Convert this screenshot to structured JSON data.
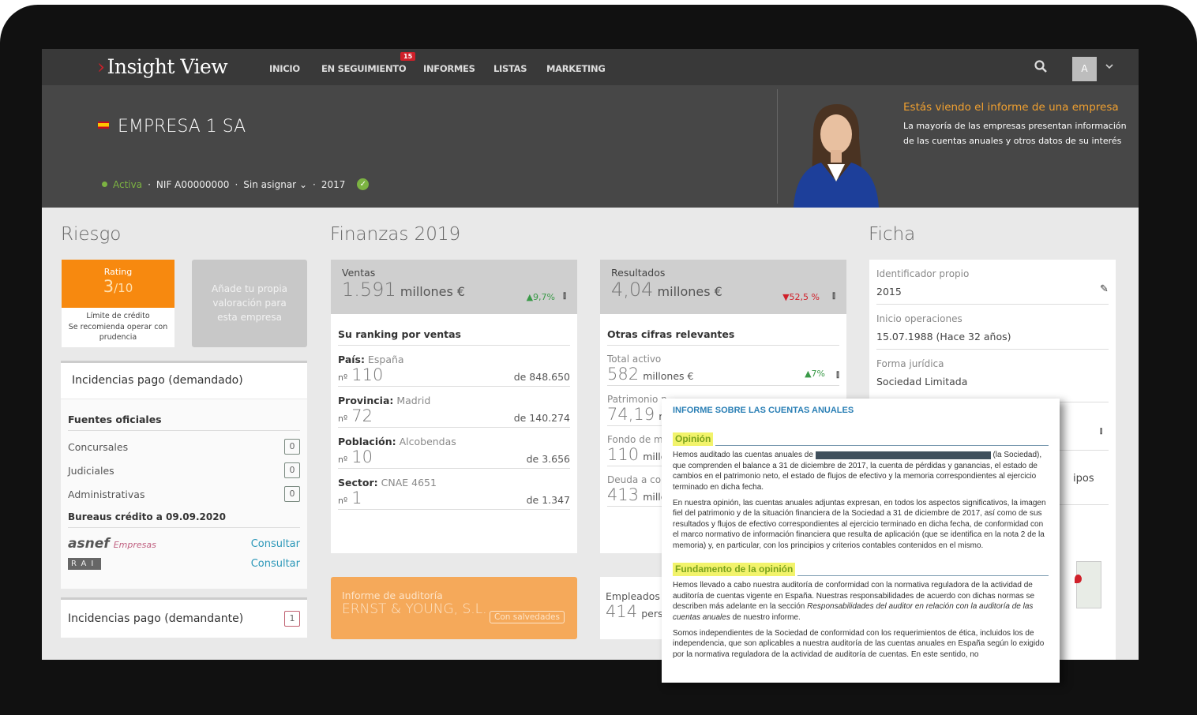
{
  "nav": {
    "brand": "Insight View",
    "items": [
      "INICIO",
      "EN SEGUIMIENTO",
      "INFORMES",
      "LISTAS",
      "MARKETING"
    ],
    "badge": "15",
    "avatar": "A"
  },
  "company": {
    "name": "EMPRESA 1 SA",
    "status": "Activa",
    "nif": "NIF A00000000",
    "assign": "Sin asignar",
    "year": "2017"
  },
  "promo": {
    "title": "Estás viendo el informe de una empresa",
    "line1": "La mayoría de las empresas presentan información",
    "line2": "de las cuentas anuales y otros datos de su interés"
  },
  "riesgo": {
    "title": "Riesgo",
    "rating_label": "Rating",
    "rating": "3",
    "rating_max": "/10",
    "limit": "Límite de crédito",
    "advice1": "Se recomienda operar con",
    "advice2": "prudencia",
    "own": "Añade tu propia valoración para esta empresa",
    "incid_dem": "Incidencias pago (demandado)",
    "fuentes": "Fuentes oficiales",
    "rows": [
      {
        "label": "Concursales",
        "count": "0"
      },
      {
        "label": "Judiciales",
        "count": "0"
      },
      {
        "label": "Administrativas",
        "count": "0"
      }
    ],
    "bureaus": "Bureaus crédito a 09.09.2020",
    "asnef": "asnef",
    "asnef_sub": "Empresas",
    "rai": "RAI",
    "consult": "Consultar",
    "incid_dte": "Incidencias pago (demandante)",
    "incid_dte_count": "1"
  },
  "finanzas": {
    "title": "Finanzas 2019",
    "ventas": {
      "label": "Ventas",
      "value": "1.591",
      "unit": "millones €",
      "change": "▲9,7%"
    },
    "resultados": {
      "label": "Resultados",
      "value": "4,04",
      "unit": "millones €",
      "change": "▼52,5 %"
    },
    "ranking_title": "Su ranking por ventas",
    "ranking": [
      {
        "k": "País:",
        "v": "España",
        "n": "110",
        "of": "de 848.650"
      },
      {
        "k": "Provincia:",
        "v": "Madrid",
        "n": "72",
        "of": "de 140.274"
      },
      {
        "k": "Población:",
        "v": "Alcobendas",
        "n": "10",
        "of": "de 3.656"
      },
      {
        "k": "Sector:",
        "v": "CNAE 4651",
        "n": "1",
        "of": "de 1.347"
      }
    ],
    "nprefix": "nº",
    "otras_title": "Otras cifras relevantes",
    "otras": [
      {
        "k": "Total activo",
        "v": "582",
        "u": "millones €",
        "c": "▲7%"
      },
      {
        "k": "Patrimonio n",
        "v": "74,19",
        "u": "mil"
      },
      {
        "k": "Fondo de ma",
        "v": "110",
        "u": "millor"
      },
      {
        "k": "Deuda a cort",
        "v": "413",
        "u": "millor"
      }
    ],
    "auditoria": {
      "label": "Informe de auditoría",
      "firm": "ERNST & YOUNG, S.L.",
      "tag": "Con salvedades"
    },
    "empleados": {
      "label": "Empleados",
      "value": "414",
      "unit": "persor"
    }
  },
  "ficha": {
    "title": "Ficha",
    "rows": [
      {
        "k": "Identificador propio",
        "v": "2015"
      },
      {
        "k": "Inicio operaciones",
        "v": "15.07.1988 (Hace 32 años)"
      },
      {
        "k": "Forma jurídica",
        "v": "Sociedad Limitada"
      }
    ],
    "partial": "ipos"
  },
  "doc": {
    "title": "INFORME SOBRE LAS CUENTAS ANUALES",
    "h1": "Opinión",
    "p1a": "Hemos auditado las cuentas anuales de",
    "p1b": "(la Sociedad), que comprenden el balance a 31 de diciembre de 2017, la cuenta de pérdidas y ganancias, el estado de cambios en el patrimonio neto, el estado de flujos de efectivo y la memoria correspondientes al ejercicio terminado en dicha fecha.",
    "p2": "En nuestra opinión, las cuentas anuales adjuntas expresan, en todos los aspectos significativos, la imagen fiel del patrimonio y de la situación financiera de la Sociedad a 31 de diciembre de 2017, así como de sus resultados y flujos de efectivo correspondientes al ejercicio terminado en dicha fecha, de conformidad con el marco normativo de información financiera que resulta de aplicación (que se identifica en la nota 2 de la memoria) y, en particular, con los principios y criterios contables contenidos en el mismo.",
    "h2": "Fundamento de la opinión",
    "p3a": "Hemos llevado a cabo nuestra auditoría de conformidad con la normativa reguladora de la actividad de auditoría de cuentas vigente en España. Nuestras responsabilidades de acuerdo con dichas normas se describen más adelante en la sección",
    "p3i": "Responsabilidades del auditor en relación con la auditoría de las cuentas anuales",
    "p3b": "de nuestro informe.",
    "p4": "Somos independientes de la Sociedad de conformidad con los requerimientos de ética, incluidos los de independencia, que son aplicables a nuestra auditoría de las cuentas anuales en España según lo exigido por la normativa reguladora de la actividad de auditoría de cuentas. En este sentido, no"
  },
  "colors": {
    "orange": "#f7890f",
    "audit": "#f5a95a",
    "green": "#7cb342",
    "red": "#d0202a",
    "link": "#2b97b8"
  }
}
